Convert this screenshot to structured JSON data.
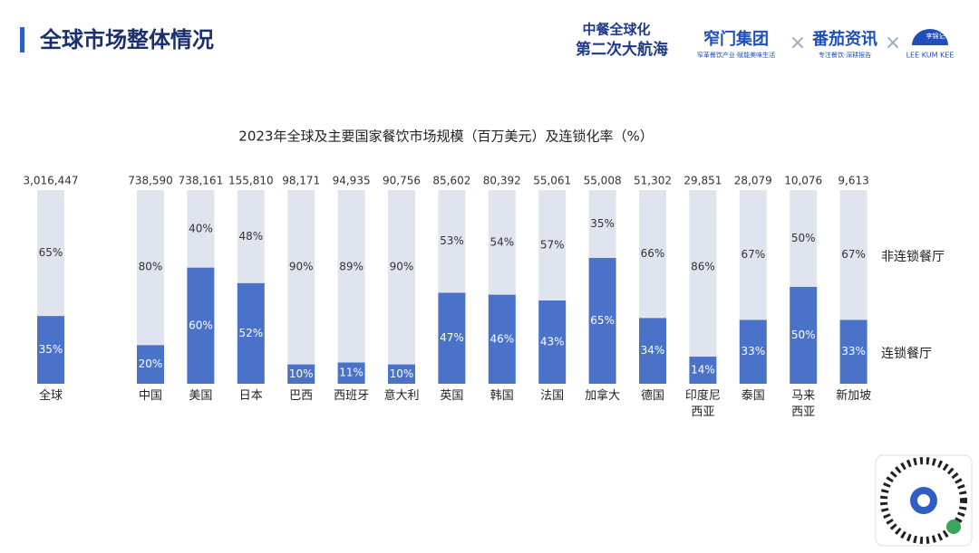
{
  "header": {
    "title": "全球市场整体情况",
    "logos": [
      "中餐全球化",
      "第二次大航海",
      "窄门集团",
      "窄革餐饮产业·赋能美味生活",
      "番茄资讯",
      "专注餐饮·深耕报告",
      "李锦记",
      "LEE KUM KEE"
    ]
  },
  "chart_data": {
    "type": "stacked_bar_percent",
    "title": "2023年全球及主要国家餐饮市场规模（百万美元）及连锁化率（%）",
    "categories": [
      "全球",
      "中国",
      "美国",
      "日本",
      "巴西",
      "西班牙",
      "意大利",
      "英国",
      "韩国",
      "法国",
      "加拿大",
      "德国",
      "印度尼\n西亚",
      "泰国",
      "马来\n西亚",
      "新加坡"
    ],
    "market_size": {
      "values": [
        3016447,
        738590,
        738161,
        155810,
        98171,
        94935,
        90756,
        85602,
        80392,
        55061,
        55008,
        51302,
        29851,
        28079,
        10076,
        9613
      ],
      "value_labels": [
        "3,016,447",
        "738,590",
        "738,161",
        "155,810",
        "98,171",
        "94,935",
        "90,756",
        "85,602",
        "80,392",
        "55,061",
        "55,008",
        "51,302",
        "29,851",
        "28,079",
        "10,076",
        "9,613"
      ]
    },
    "series": [
      {
        "name": "连锁餐厅",
        "color": "#4a72c8",
        "label_color": "#ffffff",
        "values": [
          35,
          20,
          60,
          52,
          10,
          11,
          10,
          47,
          46,
          43,
          65,
          34,
          14,
          33,
          50,
          33
        ],
        "value_labels": [
          "35%",
          "20%",
          "60%",
          "52%",
          "10%",
          "11%",
          "10%",
          "47%",
          "46%",
          "43%",
          "65%",
          "34%",
          "14%",
          "33%",
          "50%",
          "33%"
        ]
      },
      {
        "name": "非连锁餐厅",
        "color": "#dfe4ee",
        "label_color": "#333333",
        "values": [
          65,
          80,
          40,
          48,
          90,
          89,
          90,
          53,
          54,
          57,
          35,
          66,
          86,
          67,
          50,
          67
        ],
        "value_labels": [
          "65%",
          "80%",
          "40%",
          "48%",
          "90%",
          "89%",
          "90%",
          "53%",
          "54%",
          "57%",
          "35%",
          "66%",
          "86%",
          "67%",
          "50%",
          "67%"
        ]
      }
    ]
  }
}
